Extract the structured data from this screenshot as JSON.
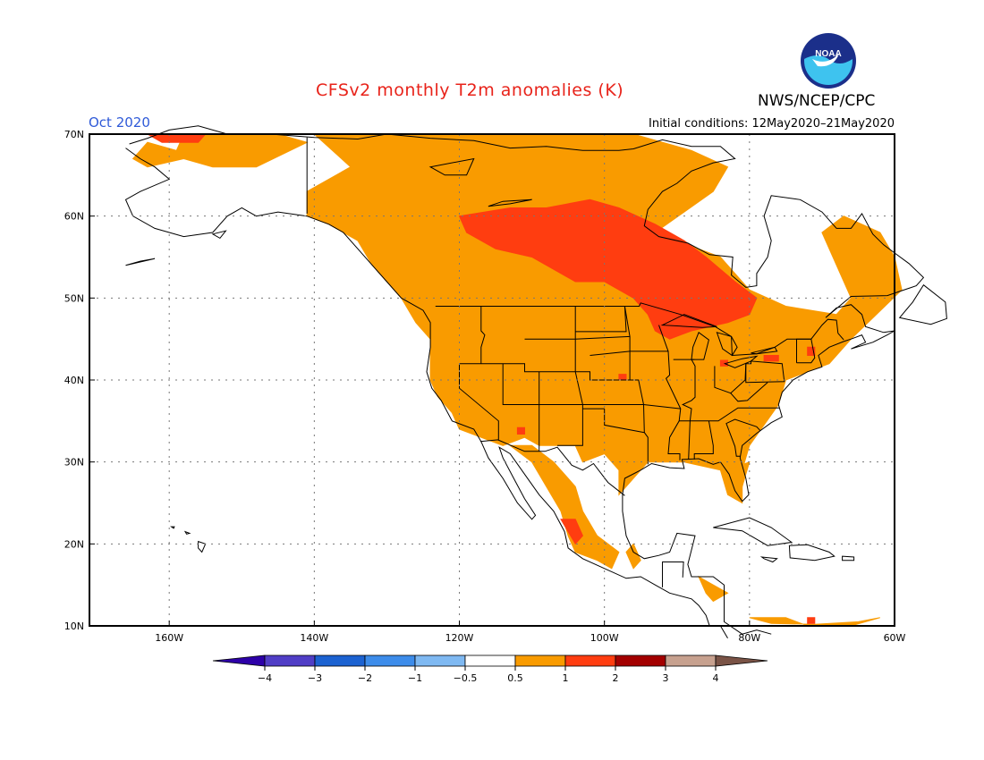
{
  "header": {
    "title": "CFSv2 monthly T2m anomalies (K)",
    "org": "NWS/NCEP/CPC",
    "month": "Oct 2020",
    "initial_conditions": "Initial conditions: 12May2020–21May2020",
    "logo_text": "NOAA"
  },
  "map": {
    "lat_labels": [
      "70N",
      "60N",
      "50N",
      "40N",
      "30N",
      "20N",
      "10N"
    ],
    "lat_values": [
      70,
      60,
      50,
      40,
      30,
      20,
      10
    ],
    "lon_labels": [
      "160W",
      "140W",
      "120W",
      "100W",
      "80W",
      "60W"
    ],
    "lon_values": [
      -160,
      -140,
      -120,
      -100,
      -80,
      -60
    ],
    "lon_range": [
      -171,
      -60
    ],
    "lat_range": [
      10,
      70
    ],
    "colors": {
      "a05": "#f99b00",
      "a1": "#ff3d10",
      "ocean": "#ffffff",
      "coast": "#000000",
      "grid": "#777777"
    }
  },
  "legend": {
    "labels": [
      "−4",
      "−3",
      "−2",
      "−1",
      "−0.5",
      "0.5",
      "1",
      "2",
      "3",
      "4"
    ],
    "colors": [
      "#2d00a8",
      "#503ec6",
      "#1c62d1",
      "#3d8cea",
      "#7fb9f2",
      "#ffffff",
      "#f99b00",
      "#ff3d10",
      "#a30000",
      "#c7a18f",
      "#7a5346"
    ]
  }
}
